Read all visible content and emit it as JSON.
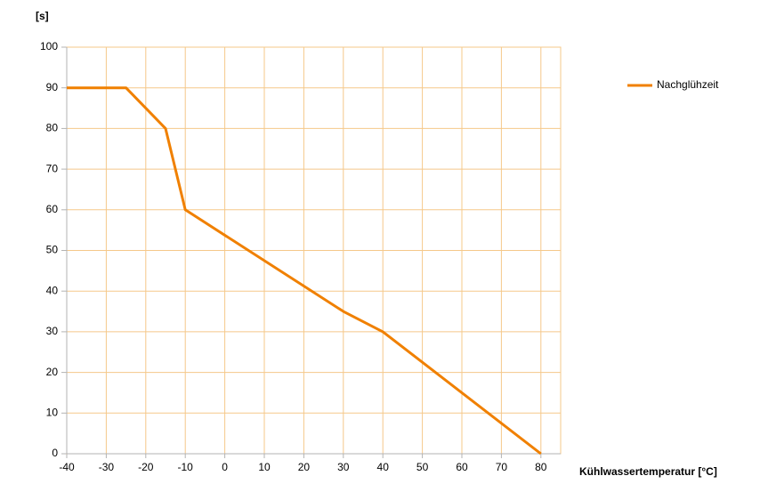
{
  "chart_data": {
    "type": "line",
    "y_label": "[s]",
    "x_label": "Kühlwassertemperatur [°C]",
    "x": [
      -40,
      -25,
      -15,
      -10,
      30,
      40,
      80
    ],
    "series": [
      {
        "name": "Nachglühzeit",
        "color": "#f08000",
        "values": [
          90,
          90,
          80,
          60,
          35,
          30,
          0
        ]
      }
    ],
    "xlim": [
      -40,
      85
    ],
    "xticks": [
      -40,
      -30,
      -20,
      -10,
      0,
      10,
      20,
      30,
      40,
      50,
      60,
      70,
      80
    ],
    "ylim": [
      0,
      100
    ],
    "yticks": [
      0,
      10,
      20,
      30,
      40,
      50,
      60,
      70,
      80,
      90,
      100
    ],
    "grid": true,
    "legend": "right"
  }
}
